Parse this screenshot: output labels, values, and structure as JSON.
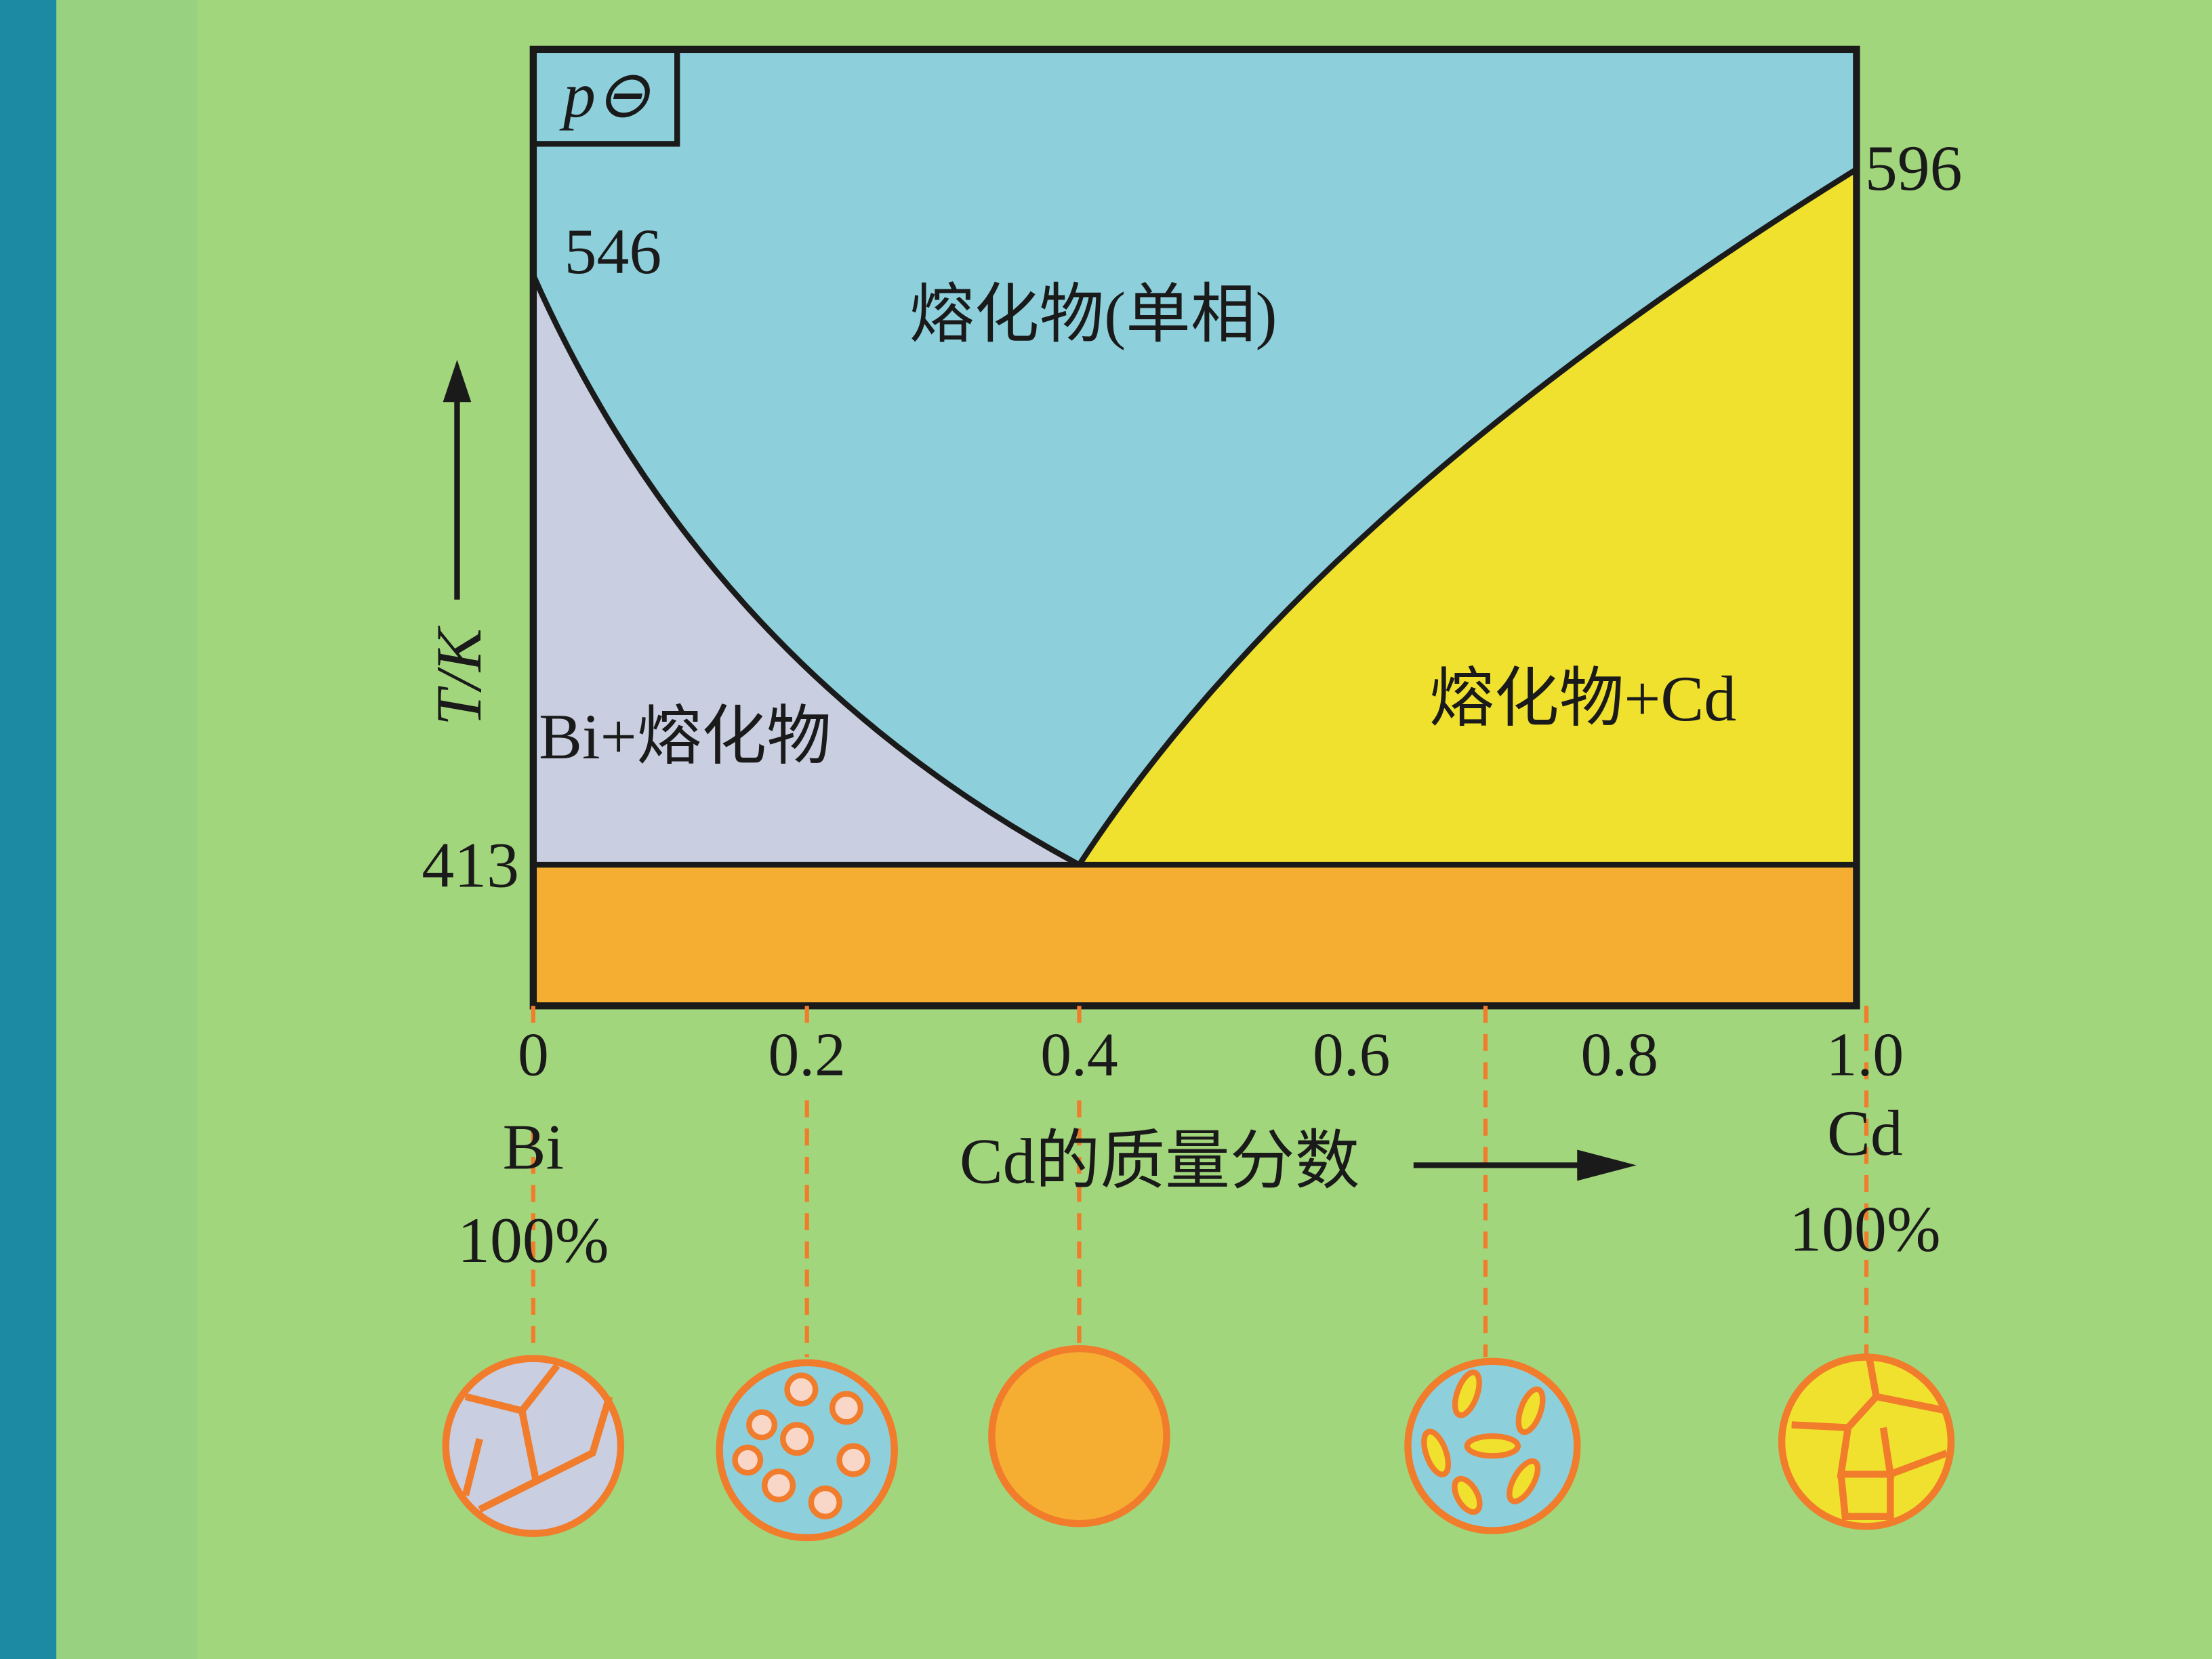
{
  "pressure_label": "p⊖",
  "y_axis_label": "T/K",
  "temperatures": {
    "bi_melting": "546",
    "cd_melting": "596",
    "eutectic": "413"
  },
  "regions": {
    "melt": "熔化物(单相)",
    "bi_melt": "Bi+熔化物",
    "melt_cd": "熔化物+Cd"
  },
  "x_axis": {
    "ticks": [
      "0",
      "0.2",
      "0.4",
      "0.6",
      "0.8",
      "1.0"
    ],
    "label": "Cd的质量分数",
    "left_end": {
      "element": "Bi",
      "percent": "100%"
    },
    "right_end": {
      "element": "Cd",
      "percent": "100%"
    }
  }
}
